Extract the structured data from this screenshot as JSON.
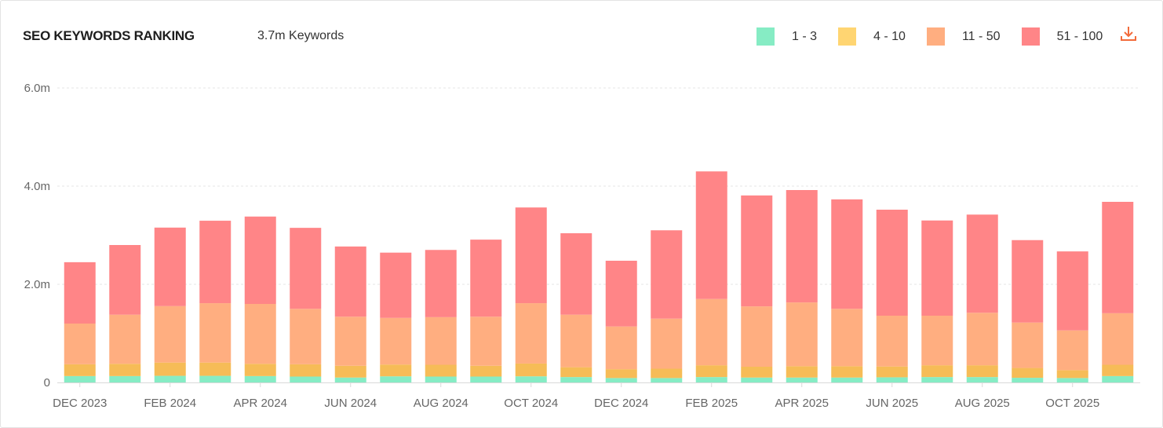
{
  "header": {
    "title": "SEO KEYWORDS RANKING",
    "subtitle": "3.7m Keywords"
  },
  "legend": [
    {
      "label": "1 - 3",
      "color": "#86ecc4",
      "swatch_color": "#86ecc4"
    },
    {
      "label": "4 - 10",
      "color": "#f6bc57",
      "swatch_color": "#ffd572"
    },
    {
      "label": "11 - 50",
      "color": "#ffae80",
      "swatch_color": "#ffae80"
    },
    {
      "label": "51 - 100",
      "color": "#ff8587",
      "swatch_color": "#ff8587"
    }
  ],
  "toolbar": {
    "download_icon": "download-icon",
    "download_color": "#f26b3a"
  },
  "chart_data": {
    "type": "bar",
    "stacked": true,
    "title": "SEO KEYWORDS RANKING",
    "xlabel": "",
    "ylabel": "",
    "ylim": [
      0,
      6000000
    ],
    "y_ticks": [
      {
        "value": 0,
        "label": "0"
      },
      {
        "value": 2000000,
        "label": "2.0m"
      },
      {
        "value": 4000000,
        "label": "4.0m"
      },
      {
        "value": 6000000,
        "label": "6.0m"
      }
    ],
    "grid": true,
    "legend_position": "top-right",
    "categories": [
      "DEC 2023",
      "JAN 2024",
      "FEB 2024",
      "MAR 2024",
      "APR 2024",
      "MAY 2024",
      "JUN 2024",
      "JUL 2024",
      "AUG 2024",
      "SEP 2024",
      "OCT 2024",
      "NOV 2024",
      "DEC 2024",
      "JAN 2025",
      "FEB 2025",
      "MAR 2025",
      "APR 2025",
      "MAY 2025",
      "JUN 2025",
      "JUL 2025",
      "AUG 2025",
      "SEP 2025",
      "OCT 2025",
      "NOV 2025"
    ],
    "x_tick_labels": [
      "DEC 2023",
      "",
      "FEB 2024",
      "",
      "APR 2024",
      "",
      "JUN 2024",
      "",
      "AUG 2024",
      "",
      "OCT 2024",
      "",
      "DEC 2024",
      "",
      "FEB 2025",
      "",
      "APR 2025",
      "",
      "JUN 2025",
      "",
      "AUG 2025",
      "",
      "OCT 2025",
      ""
    ],
    "series": [
      {
        "name": "1 - 3",
        "values": [
          130000,
          130000,
          135000,
          135000,
          130000,
          120000,
          100000,
          125000,
          120000,
          120000,
          125000,
          110000,
          90000,
          90000,
          110000,
          100000,
          100000,
          100000,
          105000,
          110000,
          110000,
          95000,
          90000,
          130000
        ]
      },
      {
        "name": "4 - 10",
        "values": [
          240000,
          250000,
          270000,
          270000,
          250000,
          250000,
          240000,
          240000,
          240000,
          220000,
          260000,
          200000,
          180000,
          190000,
          240000,
          220000,
          230000,
          230000,
          220000,
          240000,
          240000,
          200000,
          160000,
          230000
        ]
      },
      {
        "name": "11 - 50",
        "values": [
          830000,
          1000000,
          1150000,
          1210000,
          1220000,
          1130000,
          1000000,
          950000,
          970000,
          1000000,
          1230000,
          1070000,
          870000,
          1020000,
          1350000,
          1230000,
          1300000,
          1170000,
          1035000,
          1010000,
          1070000,
          925000,
          810000,
          1050000
        ]
      },
      {
        "name": "51 - 100",
        "values": [
          1250000,
          1420000,
          1600000,
          1680000,
          1780000,
          1650000,
          1430000,
          1330000,
          1370000,
          1570000,
          1950000,
          1660000,
          1340000,
          1800000,
          2600000,
          2260000,
          2290000,
          2230000,
          2160000,
          1940000,
          2000000,
          1680000,
          1610000,
          2270000
        ]
      }
    ]
  }
}
